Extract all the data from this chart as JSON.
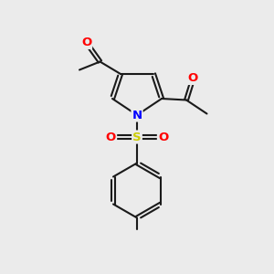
{
  "background_color": "#ebebeb",
  "bond_color": "#1a1a1a",
  "bond_width": 1.5,
  "atom_colors": {
    "O": "#ff0000",
    "N": "#0000ff",
    "S": "#cccc00",
    "C": "#1a1a1a"
  },
  "figsize": [
    3.0,
    3.0
  ],
  "dpi": 100
}
